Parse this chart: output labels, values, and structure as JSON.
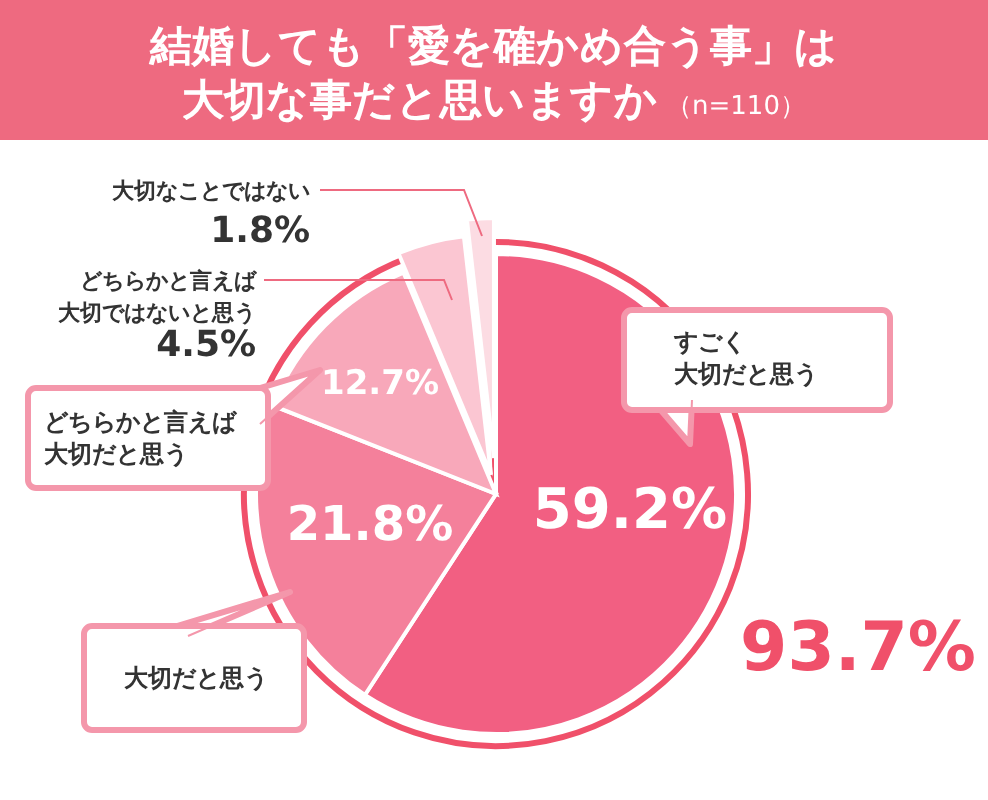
{
  "chart_data": {
    "type": "pie",
    "title": "結婚しても「愛を確かめ合う事」は大切な事だと思いますか",
    "subtitle": "（n=110）",
    "categories": [
      "すごく大切だと思う",
      "大切だと思う",
      "どちらかと言えば大切だと思う",
      "どちらかと言えば大切ではないと思う",
      "大切なことではない"
    ],
    "values": [
      59.2,
      21.8,
      12.7,
      4.5,
      1.8
    ],
    "colors": [
      "#f25f82",
      "#f4809b",
      "#f8a8ba",
      "#fbc6d2",
      "#fcdce3"
    ],
    "value_labels": [
      "59.2%",
      "21.8%",
      "12.7%",
      "4.5%",
      "1.8%"
    ],
    "annotations": [
      "93.7%"
    ]
  }
}
